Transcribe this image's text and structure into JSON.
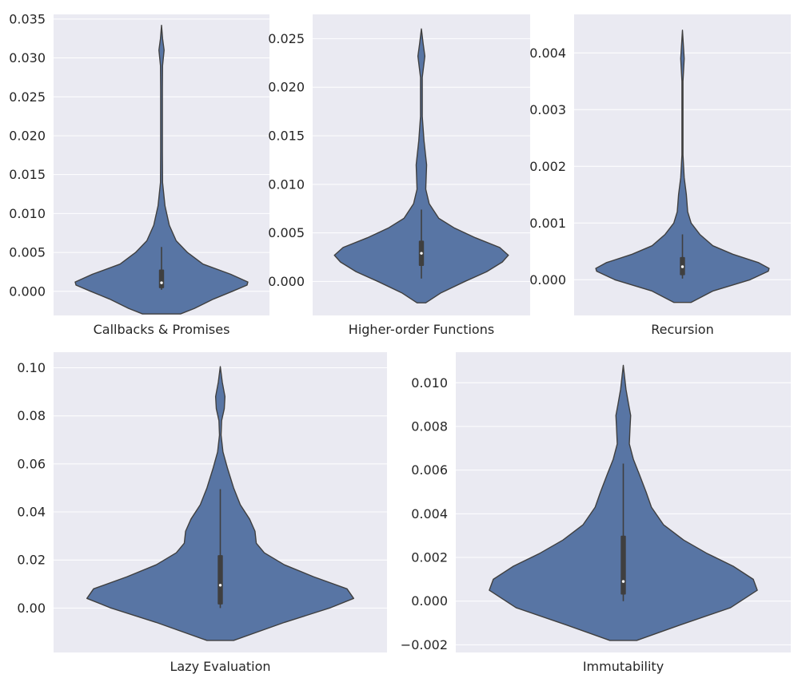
{
  "figure": {
    "background": "#ffffff",
    "panel_bg": "#eaeaf2",
    "grid_color": "#ffffff",
    "violin_fill": "#5875a4",
    "violin_edge": "#3f3f3f",
    "box_color": "#3f3f3f",
    "median_color": "#ffffff"
  },
  "chart_data": [
    {
      "type": "violin",
      "xlabel": "Callbacks & Promises",
      "ylim": [
        -0.0031,
        0.0356
      ],
      "yticks": [
        0.0,
        0.005,
        0.01,
        0.015,
        0.02,
        0.025,
        0.03,
        0.035
      ],
      "ytick_labels": [
        "0.000",
        "0.005",
        "0.010",
        "0.015",
        "0.020",
        "0.025",
        "0.030",
        "0.035"
      ],
      "violin": {
        "min": -0.0029,
        "max": 0.0342,
        "median": 0.0011,
        "q1": 0.0004,
        "q3": 0.0028,
        "whisker_low": 0.0002,
        "whisker_high": 0.0057,
        "profile": [
          [
            -0.0029,
            0.22
          ],
          [
            -0.0022,
            0.38
          ],
          [
            -0.001,
            0.6
          ],
          [
            0.0,
            0.82
          ],
          [
            0.0008,
            0.99
          ],
          [
            0.0012,
            1.0
          ],
          [
            0.0022,
            0.8
          ],
          [
            0.0035,
            0.48
          ],
          [
            0.005,
            0.3
          ],
          [
            0.0065,
            0.17
          ],
          [
            0.0085,
            0.09
          ],
          [
            0.011,
            0.04
          ],
          [
            0.014,
            0.012
          ],
          [
            0.018,
            0.01
          ],
          [
            0.026,
            0.01
          ],
          [
            0.029,
            0.012
          ],
          [
            0.031,
            0.03
          ],
          [
            0.0325,
            0.012
          ],
          [
            0.0342,
            0.0
          ]
        ]
      }
    },
    {
      "type": "violin",
      "xlabel": "Higher-order Functions",
      "ylim": [
        -0.0035,
        0.0275
      ],
      "yticks": [
        0.0,
        0.005,
        0.01,
        0.015,
        0.02,
        0.025
      ],
      "ytick_labels": [
        "0.000",
        "0.005",
        "0.010",
        "0.015",
        "0.020",
        "0.025"
      ],
      "violin": {
        "min": -0.0022,
        "max": 0.026,
        "median": 0.0029,
        "q1": 0.0016,
        "q3": 0.0042,
        "whisker_low": 0.0003,
        "whisker_high": 0.0074,
        "profile": [
          [
            -0.0022,
            0.05
          ],
          [
            -0.0012,
            0.22
          ],
          [
            0.0,
            0.5
          ],
          [
            0.001,
            0.75
          ],
          [
            0.002,
            0.93
          ],
          [
            0.0027,
            1.0
          ],
          [
            0.0035,
            0.9
          ],
          [
            0.0045,
            0.62
          ],
          [
            0.0055,
            0.38
          ],
          [
            0.0065,
            0.2
          ],
          [
            0.008,
            0.09
          ],
          [
            0.0095,
            0.05
          ],
          [
            0.012,
            0.06
          ],
          [
            0.0145,
            0.03
          ],
          [
            0.017,
            0.01
          ],
          [
            0.021,
            0.01
          ],
          [
            0.0232,
            0.04
          ],
          [
            0.0245,
            0.02
          ],
          [
            0.026,
            0.0
          ]
        ]
      }
    },
    {
      "type": "violin",
      "xlabel": "Recursion",
      "ylim": [
        -0.00063,
        0.00468
      ],
      "yticks": [
        0.0,
        0.001,
        0.002,
        0.003,
        0.004
      ],
      "ytick_labels": [
        "0.000",
        "0.001",
        "0.002",
        "0.003",
        "0.004"
      ],
      "violin": {
        "min": -0.0004,
        "max": 0.0044,
        "median": 0.00023,
        "q1": 8e-05,
        "q3": 0.0004,
        "whisker_low": 2e-05,
        "whisker_high": 0.0008,
        "profile": [
          [
            -0.0004,
            0.1
          ],
          [
            -0.0002,
            0.35
          ],
          [
            0.0,
            0.78
          ],
          [
            0.00015,
            0.99
          ],
          [
            0.0002,
            1.0
          ],
          [
            0.0003,
            0.88
          ],
          [
            0.00045,
            0.58
          ],
          [
            0.0006,
            0.35
          ],
          [
            0.0008,
            0.2
          ],
          [
            0.001,
            0.1
          ],
          [
            0.0012,
            0.06
          ],
          [
            0.0015,
            0.045
          ],
          [
            0.0018,
            0.02
          ],
          [
            0.0022,
            0.006
          ],
          [
            0.0035,
            0.006
          ],
          [
            0.0039,
            0.02
          ],
          [
            0.0041,
            0.012
          ],
          [
            0.0044,
            0.0
          ]
        ]
      }
    },
    {
      "type": "violin",
      "xlabel": "Lazy Evaluation",
      "ylim": [
        -0.0185,
        0.1065
      ],
      "yticks": [
        0.0,
        0.02,
        0.04,
        0.06,
        0.08,
        0.1
      ],
      "ytick_labels": [
        "0.00",
        "0.02",
        "0.04",
        "0.06",
        "0.08",
        "0.10"
      ],
      "violin": {
        "min": -0.0135,
        "max": 0.1005,
        "median": 0.0095,
        "q1": 0.0015,
        "q3": 0.022,
        "whisker_low": 0.0,
        "whisker_high": 0.0495,
        "profile": [
          [
            -0.0135,
            0.1
          ],
          [
            -0.006,
            0.48
          ],
          [
            0.0,
            0.82
          ],
          [
            0.004,
            1.0
          ],
          [
            0.008,
            0.95
          ],
          [
            0.013,
            0.7
          ],
          [
            0.018,
            0.48
          ],
          [
            0.023,
            0.33
          ],
          [
            0.027,
            0.27
          ],
          [
            0.032,
            0.26
          ],
          [
            0.037,
            0.22
          ],
          [
            0.043,
            0.15
          ],
          [
            0.05,
            0.1
          ],
          [
            0.058,
            0.055
          ],
          [
            0.065,
            0.02
          ],
          [
            0.072,
            0.006
          ],
          [
            0.078,
            0.01
          ],
          [
            0.083,
            0.03
          ],
          [
            0.088,
            0.035
          ],
          [
            0.094,
            0.015
          ],
          [
            0.1005,
            0.0
          ]
        ]
      }
    },
    {
      "type": "violin",
      "xlabel": "Immutability",
      "ylim": [
        -0.00235,
        0.0114
      ],
      "yticks": [
        -0.002,
        0.0,
        0.002,
        0.004,
        0.006,
        0.008,
        0.01
      ],
      "ytick_labels": [
        "−0.002",
        "0.000",
        "0.002",
        "0.004",
        "0.006",
        "0.008",
        "0.010"
      ],
      "violin": {
        "min": -0.0018,
        "max": 0.0108,
        "median": 0.0009,
        "q1": 0.0003,
        "q3": 0.003,
        "whisker_low": 0.0,
        "whisker_high": 0.0063,
        "profile": [
          [
            -0.0018,
            0.1
          ],
          [
            -0.0011,
            0.42
          ],
          [
            -0.0003,
            0.8
          ],
          [
            0.0005,
            1.0
          ],
          [
            0.001,
            0.97
          ],
          [
            0.0016,
            0.82
          ],
          [
            0.0022,
            0.62
          ],
          [
            0.0028,
            0.45
          ],
          [
            0.0035,
            0.3
          ],
          [
            0.0043,
            0.21
          ],
          [
            0.005,
            0.17
          ],
          [
            0.0058,
            0.12
          ],
          [
            0.0065,
            0.075
          ],
          [
            0.0072,
            0.045
          ],
          [
            0.0079,
            0.05
          ],
          [
            0.0085,
            0.055
          ],
          [
            0.009,
            0.04
          ],
          [
            0.0097,
            0.02
          ],
          [
            0.0108,
            0.0
          ]
        ]
      }
    }
  ]
}
